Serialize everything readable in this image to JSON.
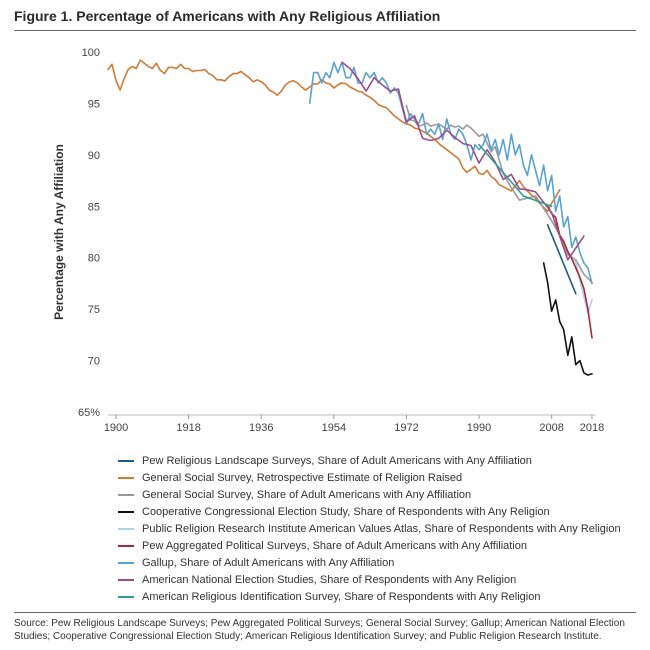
{
  "figure": {
    "title": "Figure 1. Percentage of Americans with Any Religious Affiliation",
    "source": "Source: Pew Religious Landscape Surveys; Pew Aggregated Political Surveys; General Social Survey; Gallup; American National Election Studies; Cooperative Congressional Election Study; American Religious Identification Survey; and Public Religion Research Institute."
  },
  "chart_data": {
    "type": "line",
    "title": "Figure 1. Percentage of Americans with Any Religious Affiliation",
    "xlabel": "",
    "ylabel": "Percentage with Any Affiliation",
    "xlim": [
      1898,
      2019
    ],
    "ylim": [
      65,
      100
    ],
    "x_ticks": [
      1900,
      1918,
      1936,
      1954,
      1972,
      1990,
      2008,
      2018
    ],
    "y_ticks": [
      65,
      70,
      75,
      80,
      85,
      90,
      95,
      100
    ],
    "y_tick_labels": [
      "65%",
      "70",
      "75",
      "80",
      "85",
      "90",
      "95",
      "100"
    ],
    "grid": false,
    "legend_position": "bottom",
    "series": [
      {
        "name": "Pew Religious Landscape Surveys, Share of Adult Americans with Any Affiliation",
        "color": "#1f5c8a",
        "x": [
          2007,
          2014
        ],
        "y": [
          83.2,
          76.5
        ]
      },
      {
        "name": "General Social Survey, Retrospective Estimate of Religion Raised",
        "color": "#d07a35",
        "x": [
          1898,
          1899,
          1900,
          1901,
          1902,
          1903,
          1904,
          1905,
          1906,
          1907,
          1908,
          1909,
          1910,
          1911,
          1912,
          1913,
          1914,
          1915,
          1916,
          1917,
          1918,
          1919,
          1920,
          1921,
          1922,
          1923,
          1924,
          1925,
          1926,
          1927,
          1928,
          1929,
          1930,
          1931,
          1932,
          1933,
          1934,
          1935,
          1936,
          1937,
          1938,
          1939,
          1940,
          1941,
          1942,
          1943,
          1944,
          1945,
          1946,
          1947,
          1948,
          1949,
          1950,
          1951,
          1952,
          1953,
          1954,
          1955,
          1956,
          1957,
          1958,
          1959,
          1960,
          1961,
          1962,
          1963,
          1964,
          1965,
          1966,
          1967,
          1968,
          1969,
          1970,
          1971,
          1972,
          1973,
          1974,
          1975,
          1976,
          1977,
          1978,
          1979,
          1980,
          1981,
          1982,
          1983,
          1984,
          1985,
          1986,
          1987,
          1988,
          1989,
          1990,
          1991,
          1992,
          1993,
          1994,
          1995,
          1996,
          1997,
          1998,
          1999,
          2000,
          2001,
          2002,
          2003,
          2004,
          2005,
          2006,
          2007,
          2008,
          2009,
          2010
        ],
        "y": [
          98.3,
          98.8,
          97.2,
          96.3,
          97.4,
          98.3,
          98.6,
          98.4,
          99.2,
          98.9,
          98.6,
          98.4,
          98.9,
          98.2,
          97.9,
          98.5,
          98.5,
          98.4,
          98.8,
          98.4,
          98.4,
          98.1,
          98.2,
          98.2,
          98.3,
          97.9,
          97.7,
          97.3,
          97.3,
          97.2,
          97.6,
          97.9,
          97.9,
          98.1,
          97.8,
          97.5,
          97.1,
          97.3,
          97.1,
          96.8,
          96.3,
          96.1,
          95.8,
          96.2,
          96.8,
          97.1,
          97.2,
          97.0,
          96.6,
          96.3,
          96.6,
          96.9,
          96.9,
          97.3,
          97.0,
          96.9,
          96.5,
          96.8,
          97.0,
          96.9,
          96.6,
          96.4,
          96.2,
          96.1,
          95.8,
          95.6,
          95.3,
          94.9,
          94.7,
          94.6,
          94.2,
          93.8,
          93.5,
          93.2,
          93.0,
          92.9,
          92.6,
          92.5,
          92.3,
          92.1,
          91.8,
          91.5,
          91.1,
          90.8,
          90.5,
          90.2,
          89.9,
          89.6,
          88.7,
          88.3,
          88.6,
          88.9,
          88.2,
          88.1,
          88.5,
          87.9,
          87.6,
          87.1,
          86.9,
          86.7,
          86.5,
          87.0,
          87.5,
          86.9,
          86.5,
          86.1,
          85.8,
          85.3,
          84.9,
          84.5,
          85.3,
          85.9,
          86.6
        ]
      },
      {
        "name": "General Social Survey, Share of Adult Americans with Any Affiliation",
        "color": "#9a9a9a",
        "x": [
          1972,
          1973,
          1974,
          1975,
          1976,
          1977,
          1978,
          1980,
          1982,
          1983,
          1984,
          1985,
          1986,
          1987,
          1988,
          1989,
          1990,
          1991,
          1993,
          1994,
          1996,
          1998,
          2000,
          2002,
          2004,
          2006,
          2008,
          2010,
          2012,
          2014,
          2016,
          2018
        ],
        "y": [
          94.8,
          93.4,
          93.3,
          92.8,
          92.9,
          93.1,
          92.8,
          93.0,
          92.5,
          92.9,
          92.7,
          92.8,
          92.5,
          92.9,
          92.6,
          92.2,
          91.8,
          92.0,
          90.3,
          90.8,
          88.2,
          86.8,
          85.6,
          85.8,
          86.0,
          84.8,
          83.6,
          82.2,
          80.3,
          79.8,
          78.4,
          77.6
        ]
      },
      {
        "name": "Cooperative Congressional Election Study, Share of Respondents with Any Religion",
        "color": "#111111",
        "x": [
          2006,
          2007,
          2008,
          2009,
          2010,
          2011,
          2012,
          2013,
          2014,
          2015,
          2016,
          2017,
          2018
        ],
        "y": [
          79.5,
          77.6,
          74.8,
          75.9,
          73.8,
          73.0,
          70.5,
          72.3,
          69.6,
          70.0,
          68.8,
          68.6,
          68.7
        ]
      },
      {
        "name": "Public Religion Research Institute American Values Atlas, Share of Respondents with Any Religion",
        "color": "#a9d3ef",
        "x": [
          2013,
          2014,
          2015,
          2016,
          2017,
          2018
        ],
        "y": [
          80.0,
          79.6,
          77.8,
          76.2,
          74.6,
          75.9
        ]
      },
      {
        "name": "Pew Aggregated Political Surveys, Share of Adult Americans with Any Affiliation",
        "color": "#a82a36",
        "x": [
          2007,
          2008,
          2009,
          2010,
          2011,
          2012,
          2013,
          2014,
          2015,
          2016,
          2017,
          2018
        ],
        "y": [
          85.0,
          84.3,
          83.9,
          82.2,
          81.6,
          80.6,
          79.9,
          79.0,
          78.1,
          77.0,
          75.0,
          72.2
        ]
      },
      {
        "name": "Gallup, Share of Adult Americans with Any Affiliation",
        "color": "#5aa3cf",
        "x": [
          1948,
          1949,
          1950,
          1951,
          1952,
          1953,
          1954,
          1955,
          1956,
          1957,
          1958,
          1959,
          1960,
          1961,
          1962,
          1963,
          1964,
          1965,
          1966,
          1967,
          1968,
          1969,
          1970,
          1971,
          1972,
          1973,
          1974,
          1975,
          1976,
          1977,
          1978,
          1979,
          1980,
          1981,
          1982,
          1983,
          1984,
          1985,
          1986,
          1987,
          1988,
          1989,
          1990,
          1991,
          1992,
          1993,
          1994,
          1995,
          1996,
          1997,
          1998,
          1999,
          2000,
          2001,
          2002,
          2003,
          2004,
          2005,
          2006,
          2007,
          2008,
          2009,
          2010,
          2011,
          2012,
          2013,
          2014,
          2015,
          2016,
          2017,
          2018
        ],
        "y": [
          95.0,
          98.0,
          98.0,
          97.0,
          98.0,
          97.5,
          99.0,
          98.0,
          99.0,
          97.5,
          97.5,
          98.5,
          97.0,
          97.0,
          98.0,
          97.5,
          98.0,
          97.0,
          97.5,
          97.0,
          96.0,
          96.5,
          96.0,
          94.5,
          93.0,
          94.0,
          93.5,
          93.0,
          94.0,
          92.0,
          92.5,
          92.0,
          93.0,
          91.5,
          93.5,
          92.0,
          91.5,
          92.5,
          92.0,
          91.0,
          89.5,
          91.0,
          90.5,
          91.0,
          92.0,
          90.5,
          91.5,
          90.0,
          91.5,
          89.5,
          92.0,
          90.0,
          91.0,
          89.0,
          88.0,
          90.0,
          88.5,
          87.0,
          89.0,
          86.5,
          88.0,
          84.5,
          86.0,
          83.0,
          84.0,
          81.0,
          82.0,
          80.5,
          79.5,
          79.0,
          77.5
        ]
      },
      {
        "name": "American National Election Studies, Share of Respondents with Any Religion",
        "color": "#9a4d8e",
        "x": [
          1956,
          1958,
          1960,
          1962,
          1964,
          1966,
          1968,
          1970,
          1972,
          1974,
          1976,
          1978,
          1980,
          1982,
          1984,
          1986,
          1988,
          1990,
          1992,
          1994,
          1996,
          1998,
          2000,
          2002,
          2004,
          2008,
          2012,
          2016
        ],
        "y": [
          99.0,
          98.4,
          97.4,
          96.2,
          97.5,
          96.8,
          96.2,
          96.4,
          93.2,
          93.8,
          91.6,
          91.4,
          91.6,
          92.4,
          91.7,
          91.1,
          90.9,
          89.2,
          90.5,
          89.3,
          87.6,
          88.1,
          86.7,
          86.6,
          86.4,
          84.4,
          79.8,
          82.1
        ]
      },
      {
        "name": "American Religious Identification Survey, Share of Respondents with Any Religion",
        "color": "#2e9c8e",
        "x": [
          1990,
          2001,
          2008
        ],
        "y": [
          91.0,
          86.0,
          85.0
        ]
      }
    ]
  }
}
